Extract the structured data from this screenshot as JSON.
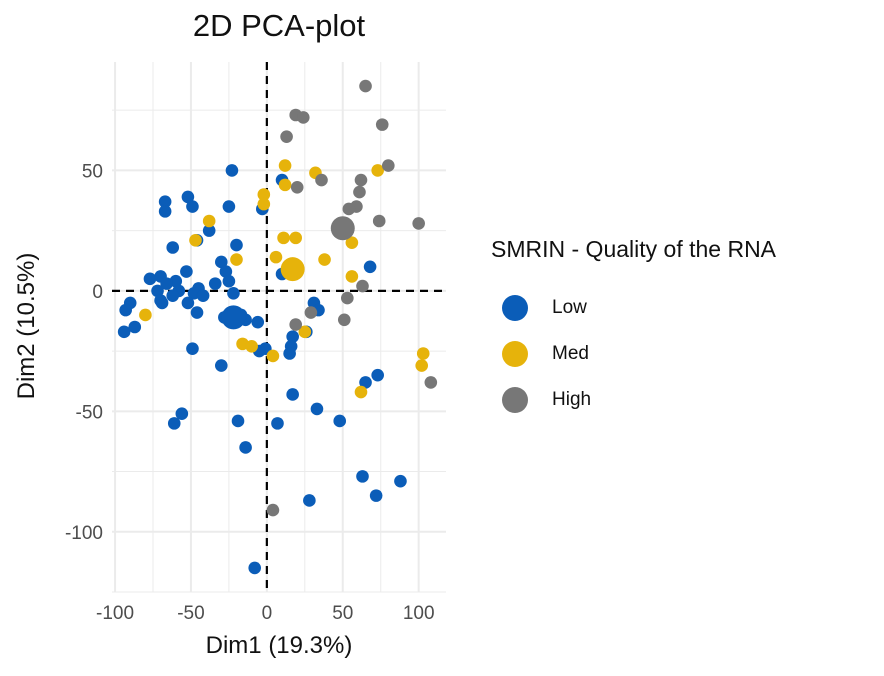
{
  "chart_data": {
    "type": "scatter",
    "title": "2D PCA-plot",
    "xlabel": "Dim1 (19.3%)",
    "ylabel": "Dim2 (10.5%)",
    "xlim": [
      -102,
      118
    ],
    "ylim": [
      -125,
      95
    ],
    "xticks": [
      -100,
      -50,
      0,
      50,
      100
    ],
    "xtick_labels": [
      "-100",
      "-50",
      "0",
      "50",
      "100"
    ],
    "yticks": [
      -100,
      -50,
      0,
      50
    ],
    "ytick_labels": [
      "-100",
      "-50",
      "0",
      "50"
    ],
    "grid": true,
    "reference_lines": {
      "x": 0,
      "y": 0,
      "style": "dashed"
    },
    "legend": {
      "title": "SMRIN - Quality of the RNA",
      "position": "right"
    },
    "series": [
      {
        "name": "Low",
        "color": "#0b5db8",
        "centroid": [
          -22,
          -11
        ],
        "points": [
          [
            -23,
            50
          ],
          [
            -52,
            39
          ],
          [
            -67,
            37
          ],
          [
            -49,
            35
          ],
          [
            -67,
            33
          ],
          [
            -25,
            35
          ],
          [
            10,
            46
          ],
          [
            -3,
            34
          ],
          [
            -38,
            25
          ],
          [
            -46,
            21
          ],
          [
            -62,
            18
          ],
          [
            -20,
            19
          ],
          [
            -30,
            12
          ],
          [
            -53,
            8
          ],
          [
            -27,
            8
          ],
          [
            -70,
            6
          ],
          [
            -77,
            5
          ],
          [
            -60,
            4
          ],
          [
            -66,
            3
          ],
          [
            -34,
            3
          ],
          [
            -25,
            4
          ],
          [
            -45,
            1
          ],
          [
            -72,
            0
          ],
          [
            -58,
            0
          ],
          [
            -62,
            -2
          ],
          [
            -48,
            -1
          ],
          [
            -70,
            -4
          ],
          [
            -42,
            -2
          ],
          [
            -22,
            -1
          ],
          [
            -90,
            -5
          ],
          [
            -52,
            -5
          ],
          [
            -93,
            -8
          ],
          [
            -69,
            -5
          ],
          [
            -46,
            -9
          ],
          [
            -28,
            -11
          ],
          [
            -20,
            -13
          ],
          [
            -14,
            -12
          ],
          [
            -17,
            -10
          ],
          [
            -6,
            -13
          ],
          [
            -87,
            -15
          ],
          [
            -94,
            -17
          ],
          [
            10,
            7
          ],
          [
            31,
            -5
          ],
          [
            34,
            -8
          ],
          [
            26,
            -17
          ],
          [
            17,
            -19
          ],
          [
            16,
            -23
          ],
          [
            15,
            -26
          ],
          [
            -1,
            -24
          ],
          [
            -5,
            -25
          ],
          [
            -49,
            -24
          ],
          [
            -30,
            -31
          ],
          [
            68,
            10
          ],
          [
            65,
            -38
          ],
          [
            73,
            -35
          ],
          [
            17,
            -43
          ],
          [
            33,
            -49
          ],
          [
            48,
            -54
          ],
          [
            -56,
            -51
          ],
          [
            -61,
            -55
          ],
          [
            -19,
            -54
          ],
          [
            7,
            -55
          ],
          [
            -14,
            -65
          ],
          [
            63,
            -77
          ],
          [
            88,
            -79
          ],
          [
            72,
            -85
          ],
          [
            28,
            -87
          ],
          [
            -8,
            -115
          ]
        ]
      },
      {
        "name": "Med",
        "color": "#e6b30b",
        "centroid": [
          17,
          9
        ],
        "points": [
          [
            12,
            52
          ],
          [
            73,
            50
          ],
          [
            32,
            49
          ],
          [
            12,
            44
          ],
          [
            -2,
            40
          ],
          [
            -2,
            36
          ],
          [
            -38,
            29
          ],
          [
            11,
            22
          ],
          [
            19,
            22
          ],
          [
            -47,
            21
          ],
          [
            56,
            20
          ],
          [
            -20,
            13
          ],
          [
            6,
            14
          ],
          [
            38,
            13
          ],
          [
            56,
            6
          ],
          [
            -80,
            -10
          ],
          [
            25,
            -17
          ],
          [
            -16,
            -22
          ],
          [
            -10,
            -23
          ],
          [
            4,
            -27
          ],
          [
            103,
            -26
          ],
          [
            102,
            -31
          ],
          [
            62,
            -42
          ]
        ]
      },
      {
        "name": "High",
        "color": "#777777",
        "centroid": [
          50,
          26
        ],
        "points": [
          [
            65,
            85
          ],
          [
            19,
            73
          ],
          [
            24,
            72
          ],
          [
            76,
            69
          ],
          [
            13,
            64
          ],
          [
            80,
            52
          ],
          [
            20,
            43
          ],
          [
            36,
            46
          ],
          [
            62,
            46
          ],
          [
            61,
            41
          ],
          [
            59,
            35
          ],
          [
            74,
            29
          ],
          [
            54,
            34
          ],
          [
            100,
            28
          ],
          [
            63,
            2
          ],
          [
            53,
            -3
          ],
          [
            29,
            -9
          ],
          [
            51,
            -12
          ],
          [
            19,
            -14
          ],
          [
            108,
            -38
          ],
          [
            4,
            -91
          ]
        ]
      }
    ]
  }
}
